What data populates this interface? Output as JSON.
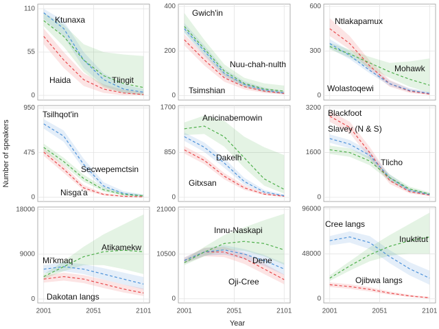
{
  "y_label": "Number of speakers",
  "x_label": "Year",
  "chart_data": [
    {
      "type": "line",
      "x": [
        2001,
        2021,
        2041,
        2061,
        2081,
        2101
      ],
      "xlim": [
        1995,
        2107
      ],
      "xticks": [
        2001,
        2051,
        2101
      ],
      "ylim": [
        -6,
        116
      ],
      "yticks": [
        0,
        55,
        110
      ],
      "grid": true,
      "series": [
        {
          "name": "Haida",
          "color": "#e8474a",
          "values": [
            75,
            45,
            20,
            8,
            3,
            1
          ],
          "lower": [
            65,
            35,
            12,
            3,
            0,
            0
          ],
          "upper": [
            85,
            55,
            28,
            14,
            7,
            4
          ]
        },
        {
          "name": "Ktunaxa",
          "color": "#4a90d9",
          "values": [
            105,
            85,
            45,
            20,
            8,
            4
          ],
          "lower": [
            97,
            75,
            35,
            12,
            3,
            1
          ],
          "upper": [
            110,
            95,
            55,
            28,
            14,
            8
          ]
        },
        {
          "name": "Tlingit",
          "color": "#4daf4a",
          "values": [
            95,
            75,
            45,
            25,
            15,
            10
          ],
          "lower": [
            88,
            62,
            30,
            10,
            3,
            0
          ],
          "upper": [
            105,
            90,
            65,
            55,
            52,
            50
          ]
        }
      ]
    },
    {
      "type": "line",
      "x": [
        2001,
        2021,
        2041,
        2061,
        2081,
        2101
      ],
      "xlim": [
        1995,
        2107
      ],
      "xticks": [
        2001,
        2051,
        2101
      ],
      "ylim": [
        -20,
        410
      ],
      "yticks": [
        0,
        200,
        400
      ],
      "grid": true,
      "series": [
        {
          "name": "Tsimshian",
          "color": "#e8474a",
          "values": [
            250,
            160,
            80,
            40,
            20,
            10
          ],
          "lower": [
            225,
            135,
            62,
            28,
            12,
            4
          ],
          "upper": [
            275,
            185,
            100,
            55,
            30,
            18
          ]
        },
        {
          "name": "Gwich'in",
          "color": "#4a90d9",
          "values": [
            300,
            200,
            100,
            50,
            25,
            12
          ],
          "lower": [
            280,
            178,
            82,
            38,
            16,
            6
          ],
          "upper": [
            325,
            225,
            120,
            65,
            36,
            20
          ]
        },
        {
          "name": "Nuu-chah-nulth",
          "color": "#4daf4a",
          "values": [
            310,
            210,
            110,
            55,
            30,
            20
          ],
          "lower": [
            285,
            185,
            90,
            40,
            18,
            8
          ],
          "upper": [
            370,
            250,
            140,
            80,
            55,
            45
          ]
        }
      ]
    },
    {
      "type": "line",
      "x": [
        2001,
        2021,
        2041,
        2061,
        2081,
        2101
      ],
      "xlim": [
        1995,
        2107
      ],
      "xticks": [
        2001,
        2051,
        2101
      ],
      "ylim": [
        -30,
        615
      ],
      "yticks": [
        0,
        300,
        600
      ],
      "grid": true,
      "series": [
        {
          "name": "Ntlakapamux",
          "color": "#e8474a",
          "values": [
            450,
            350,
            200,
            80,
            30,
            10
          ],
          "lower": [
            400,
            310,
            170,
            60,
            18,
            4
          ],
          "upper": [
            520,
            400,
            235,
            105,
            45,
            20
          ]
        },
        {
          "name": "Wolastoqewi",
          "color": "#4a90d9",
          "values": [
            350,
            270,
            170,
            80,
            35,
            15
          ],
          "lower": [
            320,
            245,
            150,
            65,
            25,
            8
          ],
          "upper": [
            380,
            300,
            195,
            100,
            50,
            25
          ]
        },
        {
          "name": "Mohawk",
          "color": "#4daf4a",
          "values": [
            330,
            280,
            220,
            160,
            110,
            70
          ],
          "lower": [
            310,
            255,
            185,
            120,
            60,
            20
          ],
          "upper": [
            355,
            310,
            260,
            220,
            230,
            250
          ]
        }
      ]
    },
    {
      "type": "line",
      "x": [
        2001,
        2021,
        2041,
        2061,
        2081,
        2101
      ],
      "xlim": [
        1995,
        2107
      ],
      "xticks": [
        2001,
        2051,
        2101
      ],
      "ylim": [
        -45,
        975
      ],
      "yticks": [
        0,
        475,
        950
      ],
      "grid": true,
      "series": [
        {
          "name": "Nisga'a",
          "color": "#e8474a",
          "values": [
            480,
            300,
            100,
            30,
            10,
            5
          ],
          "lower": [
            440,
            260,
            75,
            18,
            4,
            1
          ],
          "upper": [
            520,
            340,
            130,
            45,
            20,
            12
          ]
        },
        {
          "name": "Tsilhqot'in",
          "color": "#4a90d9",
          "values": [
            780,
            650,
            350,
            120,
            40,
            15
          ],
          "lower": [
            730,
            590,
            300,
            90,
            25,
            6
          ],
          "upper": [
            830,
            710,
            410,
            160,
            65,
            30
          ]
        },
        {
          "name": "Secwepemctsin",
          "color": "#4daf4a",
          "values": [
            530,
            380,
            200,
            80,
            30,
            15
          ],
          "lower": [
            490,
            340,
            165,
            60,
            18,
            6
          ],
          "upper": [
            570,
            420,
            240,
            110,
            50,
            30
          ]
        }
      ]
    },
    {
      "type": "line",
      "x": [
        2001,
        2021,
        2041,
        2061,
        2081,
        2101
      ],
      "xlim": [
        1995,
        2107
      ],
      "xticks": [
        2001,
        2051,
        2101
      ],
      "ylim": [
        -80,
        1740
      ],
      "yticks": [
        0,
        850,
        1700
      ],
      "grid": true,
      "series": [
        {
          "name": "Gitxsan",
          "color": "#e8474a",
          "values": [
            900,
            700,
            400,
            180,
            60,
            20
          ],
          "lower": [
            830,
            630,
            340,
            140,
            40,
            8
          ],
          "upper": [
            970,
            770,
            460,
            230,
            90,
            40
          ]
        },
        {
          "name": "Dakelh",
          "color": "#4a90d9",
          "values": [
            1150,
            950,
            650,
            300,
            100,
            30
          ],
          "lower": [
            1070,
            860,
            560,
            240,
            70,
            15
          ],
          "upper": [
            1230,
            1040,
            740,
            370,
            140,
            55
          ]
        },
        {
          "name": "Anicinabemowin",
          "color": "#4daf4a",
          "values": [
            1300,
            1350,
            1150,
            750,
            350,
            150
          ],
          "lower": [
            1180,
            1200,
            960,
            560,
            220,
            70
          ],
          "upper": [
            1420,
            1550,
            1450,
            1150,
            950,
            800
          ]
        }
      ]
    },
    {
      "type": "line",
      "x": [
        2001,
        2021,
        2041,
        2061,
        2081,
        2101
      ],
      "xlim": [
        1995,
        2107
      ],
      "xticks": [
        2001,
        2051,
        2101
      ],
      "ylim": [
        -150,
        3280
      ],
      "yticks": [
        0,
        1600,
        3200
      ],
      "grid": true,
      "series": [
        {
          "name": "Blackfoot",
          "color": "#e8474a",
          "values": [
            2900,
            2500,
            1600,
            600,
            200,
            80
          ],
          "lower": [
            2700,
            2300,
            1400,
            480,
            140,
            40
          ],
          "upper": [
            3100,
            2700,
            1800,
            750,
            280,
            130
          ]
        },
        {
          "name": "Slavey (N & S)",
          "color": "#4a90d9",
          "values": [
            2100,
            1900,
            1500,
            700,
            250,
            100
          ],
          "lower": [
            1950,
            1750,
            1350,
            580,
            180,
            60
          ],
          "upper": [
            2250,
            2050,
            1650,
            820,
            320,
            150
          ]
        },
        {
          "name": "Tlicho",
          "color": "#4daf4a",
          "values": [
            1700,
            1600,
            1300,
            700,
            300,
            120
          ],
          "lower": [
            1550,
            1450,
            1150,
            580,
            220,
            70
          ],
          "upper": [
            1850,
            1750,
            1450,
            820,
            380,
            180
          ]
        }
      ]
    },
    {
      "type": "line",
      "x": [
        2001,
        2021,
        2041,
        2061,
        2081,
        2101
      ],
      "xlim": [
        1995,
        2107
      ],
      "xticks": [
        2001,
        2051,
        2101
      ],
      "ylim": [
        -800,
        18500
      ],
      "yticks": [
        0,
        9000,
        18000
      ],
      "grid": true,
      "series": [
        {
          "name": "Dakotan langs",
          "color": "#e8474a",
          "values": [
            4000,
            4500,
            4000,
            3000,
            2000,
            1200
          ],
          "lower": [
            3300,
            3700,
            3200,
            2200,
            1300,
            600
          ],
          "upper": [
            4700,
            5300,
            4800,
            3900,
            2900,
            2100
          ]
        },
        {
          "name": "Mi'kmaq",
          "color": "#4a90d9",
          "values": [
            6000,
            6500,
            6000,
            5000,
            4000,
            3000
          ],
          "lower": [
            5200,
            5600,
            5000,
            3900,
            2900,
            1900
          ],
          "upper": [
            6800,
            7400,
            7000,
            6200,
            5300,
            4400
          ]
        },
        {
          "name": "Atikamekw",
          "color": "#4daf4a",
          "values": [
            4500,
            6500,
            8500,
            9500,
            9800,
            9500
          ],
          "lower": [
            4000,
            5600,
            6800,
            6800,
            6000,
            5000
          ],
          "upper": [
            5000,
            7600,
            10500,
            13000,
            15000,
            17000
          ]
        }
      ]
    },
    {
      "type": "line",
      "x": [
        2001,
        2021,
        2041,
        2061,
        2081,
        2101
      ],
      "xlim": [
        1995,
        2107
      ],
      "xticks": [
        2001,
        2051,
        2101
      ],
      "ylim": [
        -1000,
        21600
      ],
      "yticks": [
        0,
        10500,
        21000
      ],
      "grid": true,
      "series": [
        {
          "name": "Oji-Cree",
          "color": "#e8474a",
          "values": [
            9000,
            11000,
            11000,
            9500,
            7000,
            4500
          ],
          "lower": [
            8300,
            10000,
            9800,
            8200,
            5800,
            3400
          ],
          "upper": [
            9700,
            12000,
            12200,
            10800,
            8300,
            5700
          ]
        },
        {
          "name": "Dene",
          "color": "#4a90d9",
          "values": [
            9000,
            11000,
            11500,
            10500,
            9000,
            7000
          ],
          "lower": [
            8300,
            10100,
            10400,
            9300,
            7700,
            5600
          ],
          "upper": [
            9700,
            11900,
            12600,
            11700,
            10300,
            8400
          ]
        },
        {
          "name": "Innu-Naskapi",
          "color": "#4daf4a",
          "values": [
            8500,
            11000,
            13000,
            13500,
            13000,
            11500
          ],
          "lower": [
            7900,
            10000,
            11500,
            11300,
            10000,
            8000
          ],
          "upper": [
            9200,
            12200,
            15000,
            16800,
            18500,
            20000
          ]
        }
      ]
    },
    {
      "type": "line",
      "x": [
        2001,
        2021,
        2041,
        2061,
        2081,
        2101
      ],
      "xlim": [
        1995,
        2107
      ],
      "xticks": [
        2001,
        2051,
        2101
      ],
      "ylim": [
        -4500,
        98000
      ],
      "yticks": [
        {
          "value": 0,
          "label": "0"
        },
        48000,
        96000
      ],
      "grid": true,
      "series": [
        {
          "name": "Ojibwa langs",
          "color": "#e8474a",
          "values": [
            15000,
            13000,
            10000,
            6000,
            3000,
            1000
          ],
          "lower": [
            12500,
            10500,
            7800,
            4300,
            1800,
            300
          ],
          "upper": [
            17500,
            15500,
            12300,
            7800,
            4300,
            1900
          ]
        },
        {
          "name": "Cree langs",
          "color": "#4a90d9",
          "values": [
            62000,
            66000,
            60000,
            45000,
            32000,
            22000
          ],
          "lower": [
            57000,
            60000,
            53000,
            38000,
            25000,
            15000
          ],
          "upper": [
            67000,
            72000,
            67000,
            52000,
            39000,
            30000
          ]
        },
        {
          "name": "Inuktitut",
          "color": "#4daf4a",
          "values": [
            22000,
            35000,
            47000,
            56000,
            62000,
            66000
          ],
          "lower": [
            19000,
            30000,
            40000,
            46000,
            48000,
            48000
          ],
          "upper": [
            25000,
            40000,
            55000,
            68000,
            80000,
            92000
          ]
        }
      ]
    }
  ]
}
